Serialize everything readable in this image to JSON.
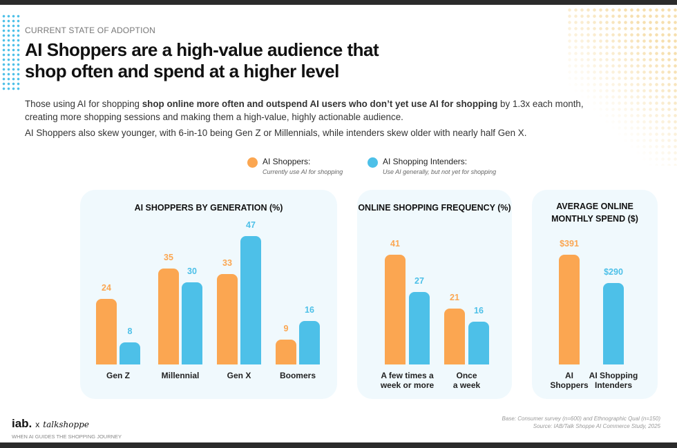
{
  "eyebrow": "CURRENT STATE OF ADOPTION",
  "title_line1": "AI Shoppers are a high-value audience that",
  "title_line2": "shop often and spend at a higher level",
  "para1_a": "Those using AI for shopping ",
  "para1_b": "shop online more often and outspend AI users who don’t yet use AI for shopping",
  "para1_c": " by 1.3x each month,",
  "para1_d": "creating more shopping sessions and making them a high-value, highly actionable audience.",
  "para2": "AI Shoppers also skew younger, with 6-in-10 being Gen Z or Millennials, while intenders skew older with nearly half Gen X.",
  "legend": [
    {
      "label": "AI Shoppers:",
      "sub": "Currently use AI for shopping",
      "color": "#fba651"
    },
    {
      "label": "AI Shopping Intenders:",
      "sub": "Use AI generally, but not yet for shopping",
      "color": "#4dc0e8"
    }
  ],
  "colors": {
    "ai_shoppers": "#fba651",
    "intenders": "#4dc0e8"
  },
  "chart_data": [
    {
      "type": "bar",
      "title": "AI SHOPPERS BY GENERATION (%)",
      "categories": [
        "Gen Z",
        "Millennial",
        "Gen X",
        "Boomers"
      ],
      "series": [
        {
          "name": "AI Shoppers",
          "values": [
            24,
            35,
            33,
            9
          ]
        },
        {
          "name": "AI Shopping Intenders",
          "values": [
            8,
            30,
            47,
            16
          ]
        }
      ],
      "labels": [
        [
          "24",
          "8"
        ],
        [
          "35",
          "30"
        ],
        [
          "33",
          "47"
        ],
        [
          "9",
          "16"
        ]
      ]
    },
    {
      "type": "bar",
      "title": "ONLINE SHOPPING FREQUENCY (%)",
      "categories": [
        "A few times a week or more",
        "Once a week"
      ],
      "series": [
        {
          "name": "AI Shoppers",
          "values": [
            41,
            21
          ]
        },
        {
          "name": "AI Shopping Intenders",
          "values": [
            27,
            16
          ]
        }
      ],
      "labels": [
        [
          "41",
          "27"
        ],
        [
          "21",
          "16"
        ]
      ]
    },
    {
      "type": "bar",
      "title": "AVERAGE ONLINE MONTHLY SPEND ($)",
      "categories": [
        "AI Shoppers",
        "AI Shopping Intenders"
      ],
      "series": [
        {
          "name": "Spend",
          "values": [
            391,
            290
          ]
        }
      ],
      "labels": [
        [
          "$391"
        ],
        [
          "$290"
        ]
      ]
    }
  ],
  "footer": {
    "brand": "iab.",
    "x": "x",
    "partner": "talkshoppe",
    "tagline": "WHEN AI GUIDES THE SHOPPING JOURNEY",
    "base": "Base: Consumer survey (n=600) and Ethnographic Qual (n=150)",
    "source": "Source: IAB/Talk Shoppe AI Commerce Study, 2025"
  }
}
